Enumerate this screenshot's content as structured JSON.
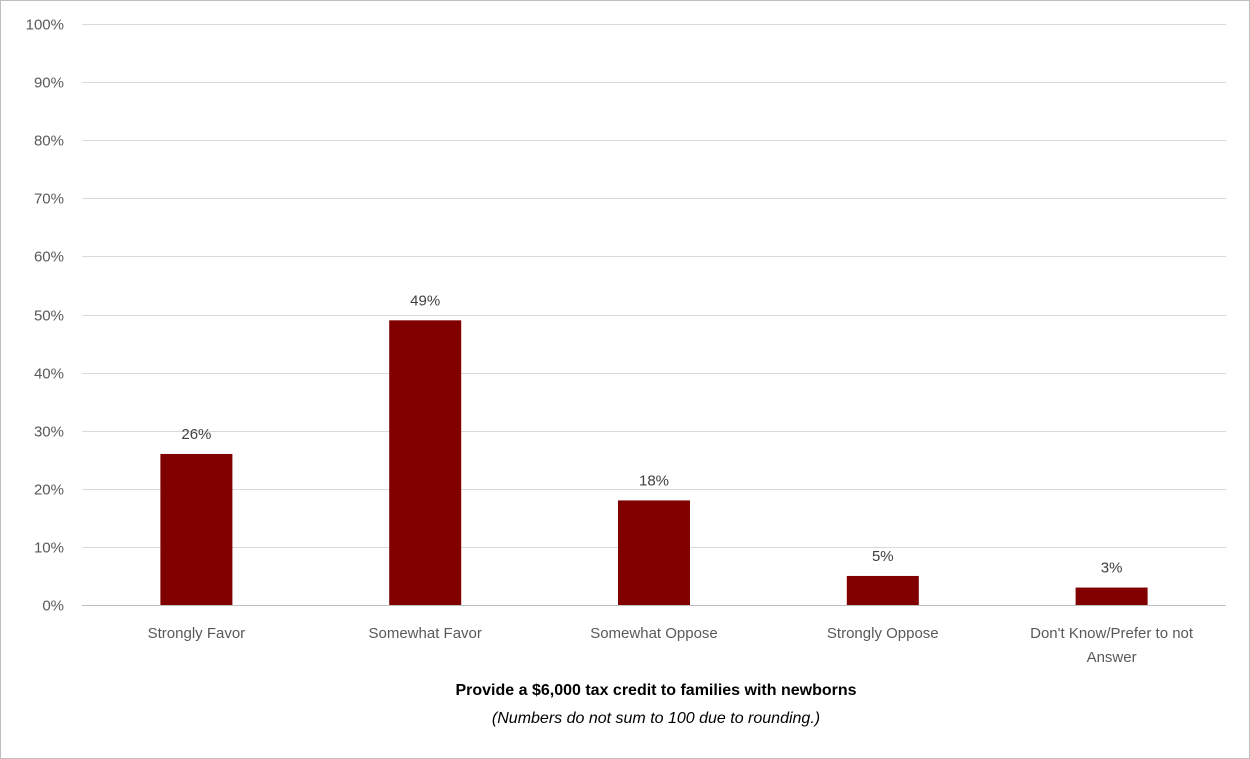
{
  "chart_data": {
    "type": "bar",
    "title": "Provide a $6,000 tax credit to families with newborns",
    "subtitle": "(Numbers do not sum to 100 due to rounding.)",
    "categories": [
      [
        "Strongly Favor"
      ],
      [
        "Somewhat Favor"
      ],
      [
        "Somewhat Oppose"
      ],
      [
        "Strongly Oppose"
      ],
      [
        "Don't Know/Prefer to not",
        "Answer"
      ]
    ],
    "values": [
      26,
      49,
      18,
      5,
      3
    ],
    "data_labels": [
      "26%",
      "49%",
      "18%",
      "5%",
      "3%"
    ],
    "ylim": [
      0,
      100
    ],
    "yticks": [
      0,
      10,
      20,
      30,
      40,
      50,
      60,
      70,
      80,
      90,
      100
    ],
    "ytick_labels": [
      "0%",
      "10%",
      "20%",
      "30%",
      "40%",
      "50%",
      "60%",
      "70%",
      "80%",
      "90%",
      "100%"
    ],
    "xlabel": "",
    "ylabel": "",
    "grid": true,
    "legend": "none",
    "bar_color": "#800000"
  }
}
